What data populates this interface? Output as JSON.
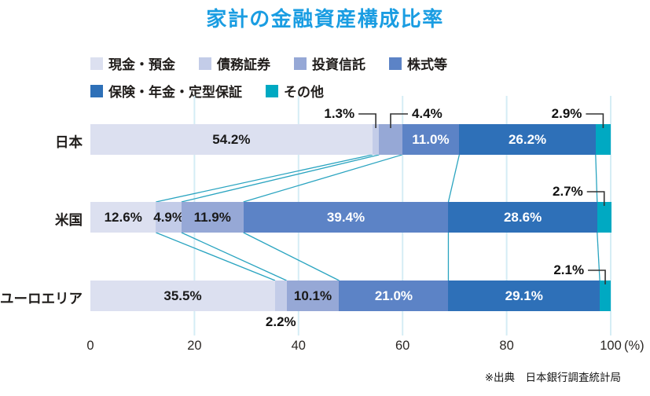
{
  "title": "家計の金融資産構成比率",
  "source_note": "※出典　日本銀行調査統計局",
  "axis": {
    "tick_labels": [
      "0",
      "20",
      "40",
      "60",
      "80",
      "100"
    ],
    "tick_values": [
      0,
      20,
      40,
      60,
      80,
      100
    ],
    "unit_label": "(%)"
  },
  "colors": {
    "title": "#1a9de2",
    "grid": "#d5edf5",
    "connector": "#2aa4c0",
    "callout_line": "#333333",
    "label_dark": "#1a1a1a",
    "label_light": "#ffffff"
  },
  "series_meta": [
    {
      "label": "現金・預金",
      "color": "#dce0f0",
      "text": "dark"
    },
    {
      "label": "債務証券",
      "color": "#c3cce8",
      "text": "dark"
    },
    {
      "label": "投資信託",
      "color": "#96a8d6",
      "text": "dark"
    },
    {
      "label": "株式等",
      "color": "#5c83c6",
      "text": "light"
    },
    {
      "label": "保険・年金・定型保証",
      "color": "#2e70b8",
      "text": "light"
    },
    {
      "label": "その他",
      "color": "#00a9c2",
      "text": "light"
    }
  ],
  "chart_data": {
    "type": "bar",
    "variant": "horizontal-stacked",
    "unit": "%",
    "title": "家計の金融資産構成比率",
    "categories": [
      "日本",
      "米国",
      "ユーロエリア"
    ],
    "series": [
      {
        "name": "現金・預金",
        "values": [
          54.2,
          12.6,
          35.5
        ]
      },
      {
        "name": "債務証券",
        "values": [
          1.3,
          4.9,
          2.2
        ]
      },
      {
        "name": "投資信託",
        "values": [
          4.4,
          11.9,
          10.1
        ]
      },
      {
        "name": "株式等",
        "values": [
          11.0,
          39.4,
          21.0
        ]
      },
      {
        "name": "保険・年金・定型保証",
        "values": [
          26.2,
          28.6,
          29.1
        ]
      },
      {
        "name": "その他",
        "values": [
          2.9,
          2.7,
          2.1
        ]
      }
    ],
    "xlim": [
      0,
      100
    ],
    "x_ticks": [
      0,
      20,
      40,
      60,
      80,
      100
    ],
    "grid": true,
    "legend_position": "top"
  }
}
